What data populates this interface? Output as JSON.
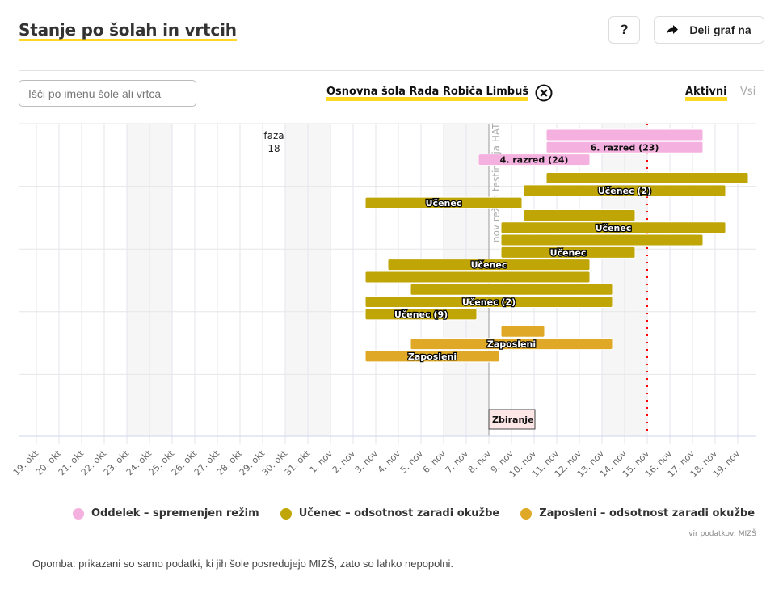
{
  "header": {
    "title": "Stanje po šolah in vrtcih",
    "help_label": "?",
    "share_label": "Deli graf na",
    "share_icon": "share-arrow-icon"
  },
  "filters": {
    "search_placeholder": "Išči po imenu šole ali vrtca",
    "search_value": "",
    "selected_school": "Osnovna šola Rada Robiča Limbuš",
    "clear_icon": "close-circle-icon",
    "tabs": [
      {
        "label": "Aktivni",
        "active": true
      },
      {
        "label": "Vsi",
        "active": false
      }
    ]
  },
  "colors": {
    "accent": "#ffd824",
    "oddelek": "#f4b0df",
    "ucenec": "#bfa505",
    "zaposleni": "#dfa826",
    "today_line": "#ff0000",
    "weekend": "#f6f6f6"
  },
  "chart_data": {
    "type": "gantt",
    "title": "",
    "x_start": "2020-10-19",
    "x_ticks": [
      "19. okt",
      "20. okt",
      "21. okt",
      "22. okt",
      "23. okt",
      "24. okt",
      "25. okt",
      "26. okt",
      "27. okt",
      "28. okt",
      "29. okt",
      "30. okt",
      "31. okt",
      "1. nov",
      "2. nov",
      "3. nov",
      "4. nov",
      "5. nov",
      "6. nov",
      "7. nov",
      "8. nov",
      "9. nov",
      "10. nov",
      "11. nov",
      "12. nov",
      "13. nov",
      "14. nov",
      "15. nov",
      "16. nov",
      "17. nov",
      "18. nov",
      "19. nov"
    ],
    "weekend_days": [
      5,
      6,
      12,
      13,
      19,
      20,
      26,
      27
    ],
    "xlim_days": [
      -0.5,
      32
    ],
    "today_day": 27,
    "phase_marker": {
      "day": 20,
      "label": "Zbiranje",
      "vertical_text": "nov režim testiranja HAT"
    },
    "phase_annotation": {
      "label": "faza",
      "value": "18",
      "day": 10
    },
    "rows_count": 19,
    "bars": [
      {
        "row": 0,
        "category": "oddelek",
        "start": 22.5,
        "end": 29.5,
        "label": ""
      },
      {
        "row": 1,
        "category": "oddelek",
        "start": 22.5,
        "end": 29.5,
        "label": "6. razred (23)"
      },
      {
        "row": 2,
        "category": "oddelek",
        "start": 19.5,
        "end": 24.5,
        "label": "4. razred (24)"
      },
      {
        "row": 3.5,
        "category": "ucenec",
        "start": 22.5,
        "end": 31.5,
        "label": ""
      },
      {
        "row": 4.5,
        "category": "ucenec",
        "start": 21.5,
        "end": 30.5,
        "label": "Učenec (2)"
      },
      {
        "row": 5.5,
        "category": "ucenec",
        "start": 14.5,
        "end": 21.5,
        "label": "Učenec"
      },
      {
        "row": 6.5,
        "category": "ucenec",
        "start": 21.5,
        "end": 26.5,
        "label": ""
      },
      {
        "row": 7.5,
        "category": "ucenec",
        "start": 20.5,
        "end": 30.5,
        "label": "Učenec"
      },
      {
        "row": 8.5,
        "category": "ucenec",
        "start": 20.5,
        "end": 29.5,
        "label": ""
      },
      {
        "row": 9.5,
        "category": "ucenec",
        "start": 20.5,
        "end": 26.5,
        "label": "Učenec"
      },
      {
        "row": 10.5,
        "category": "ucenec",
        "start": 15.5,
        "end": 24.5,
        "label": "Učenec"
      },
      {
        "row": 11.5,
        "category": "ucenec",
        "start": 14.5,
        "end": 24.5,
        "label": ""
      },
      {
        "row": 12.5,
        "category": "ucenec",
        "start": 16.5,
        "end": 25.5,
        "label": ""
      },
      {
        "row": 13.5,
        "category": "ucenec",
        "start": 14.5,
        "end": 25.5,
        "label": "Učenec (2)"
      },
      {
        "row": 14.5,
        "category": "ucenec",
        "start": 14.5,
        "end": 19.5,
        "label": "Učenec (9)"
      },
      {
        "row": 15.9,
        "category": "zaposleni",
        "start": 20.5,
        "end": 22.5,
        "label": ""
      },
      {
        "row": 16.9,
        "category": "zaposleni",
        "start": 16.5,
        "end": 25.5,
        "label": "Zaposleni"
      },
      {
        "row": 17.9,
        "category": "zaposleni",
        "start": 14.5,
        "end": 20.5,
        "label": "Zaposleni"
      }
    ],
    "legend": [
      {
        "key": "oddelek",
        "label": "Oddelek – spremenjen režim"
      },
      {
        "key": "ucenec",
        "label": "Učenec – odsotnost zaradi okužbe"
      },
      {
        "key": "zaposleni",
        "label": "Zaposleni – odsotnost zaradi okužbe"
      }
    ],
    "legend_position": "bottom",
    "grid": true
  },
  "footer": {
    "source": "vir podatkov: MIZŠ",
    "note": "Opomba: prikazani so samo podatki, ki jih šole posredujejo MIZŠ, zato so lahko nepopolni."
  }
}
